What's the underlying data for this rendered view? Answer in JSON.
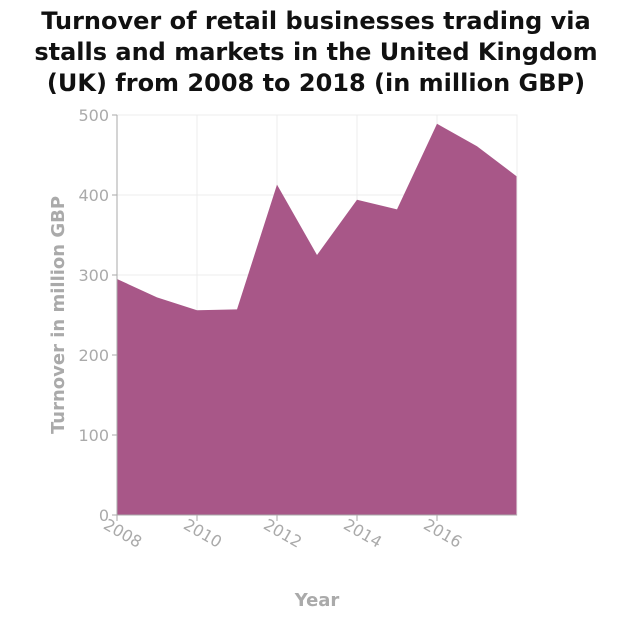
{
  "chart_data": {
    "type": "area",
    "title_lines": [
      "Turnover of retail businesses trading via",
      "stalls and markets in the United Kingdom",
      "(UK) from 2008 to 2018 (in million GBP)"
    ],
    "xlabel": "Year",
    "ylabel": "Turnover in million GBP",
    "x": [
      2008,
      2009,
      2010,
      2011,
      2012,
      2013,
      2014,
      2015,
      2016,
      2017,
      2018
    ],
    "values": [
      295,
      272,
      256,
      257,
      413,
      325,
      394,
      382,
      489,
      461,
      423
    ],
    "xlim": [
      2008,
      2018
    ],
    "ylim": [
      0,
      500
    ],
    "xticks": [
      2008,
      2010,
      2012,
      2014,
      2016
    ],
    "yticks": [
      0,
      100,
      200,
      300,
      400,
      500
    ],
    "grid": true,
    "fill_color": "#a85788",
    "grid_color": "#ececec",
    "axis_color": "#aaaaaa"
  }
}
